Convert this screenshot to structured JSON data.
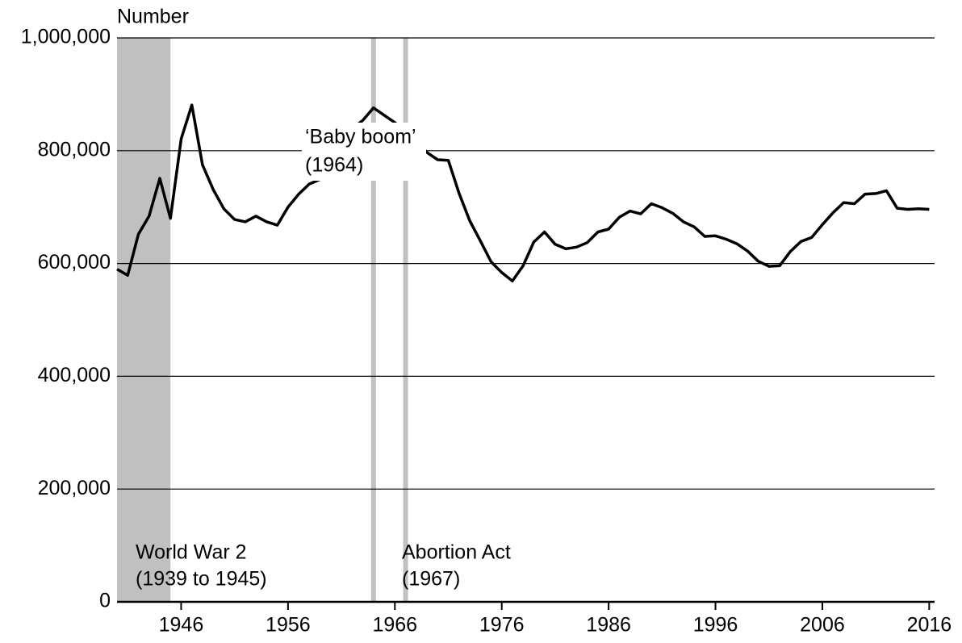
{
  "chart_data": {
    "type": "line",
    "y_axis_label": "Number",
    "x": [
      1940,
      1941,
      1942,
      1943,
      1944,
      1945,
      1946,
      1947,
      1948,
      1949,
      1950,
      1951,
      1952,
      1953,
      1954,
      1955,
      1956,
      1957,
      1958,
      1959,
      1960,
      1961,
      1962,
      1963,
      1964,
      1965,
      1966,
      1967,
      1968,
      1969,
      1970,
      1971,
      1972,
      1973,
      1974,
      1975,
      1976,
      1977,
      1978,
      1979,
      1980,
      1981,
      1982,
      1983,
      1984,
      1985,
      1986,
      1987,
      1988,
      1989,
      1990,
      1991,
      1992,
      1993,
      1994,
      1995,
      1996,
      1997,
      1998,
      1999,
      2000,
      2001,
      2002,
      2003,
      2004,
      2005,
      2006,
      2007,
      2008,
      2009,
      2010,
      2011,
      2012,
      2013,
      2014,
      2015,
      2016
    ],
    "values": [
      590000,
      579000,
      652000,
      684000,
      751000,
      680000,
      821000,
      881000,
      775000,
      731000,
      697000,
      678000,
      674000,
      684000,
      674000,
      668000,
      700000,
      723000,
      741000,
      749000,
      785000,
      811000,
      839000,
      854000,
      876000,
      863000,
      850000,
      832000,
      819000,
      797000,
      784000,
      783000,
      725000,
      676000,
      640000,
      603000,
      584000,
      569000,
      596000,
      638000,
      656000,
      634000,
      626000,
      629000,
      637000,
      656000,
      661000,
      682000,
      693000,
      688000,
      706000,
      699000,
      689000,
      674000,
      665000,
      648000,
      649000,
      643000,
      635000,
      622000,
      604000,
      595000,
      596000,
      621000,
      639000,
      646000,
      669000,
      690000,
      708000,
      706000,
      723000,
      724000,
      729000,
      698000,
      696000,
      697000,
      696000
    ],
    "color": "#000000",
    "xlim": [
      1940,
      2016.5
    ],
    "ylim": [
      0,
      1000000
    ],
    "xticks": [
      1946,
      1956,
      1966,
      1976,
      1986,
      1996,
      2006,
      2016
    ],
    "yticks": [
      0,
      {
        "value": 200000,
        "label": "200,000"
      },
      {
        "value": 400000,
        "label": "400,000"
      },
      {
        "value": 600000,
        "label": "600,000"
      },
      {
        "value": 800000,
        "label": "800,000"
      },
      {
        "value": 1000000,
        "label": "1,000,000"
      }
    ],
    "grid": true,
    "shaded_periods": [
      {
        "start": 1940,
        "end": 1945,
        "label": "World War 2",
        "sublabel": "(1939 to 1945)",
        "color": "#c0c0c0"
      }
    ],
    "event_lines": [
      {
        "x": 1964,
        "label": "‘Baby boom’",
        "sublabel": "(1964)",
        "color": "#c0c0c0"
      },
      {
        "x": 1967,
        "label": "Abortion Act",
        "sublabel": "(1967)",
        "color": "#c0c0c0"
      }
    ]
  }
}
